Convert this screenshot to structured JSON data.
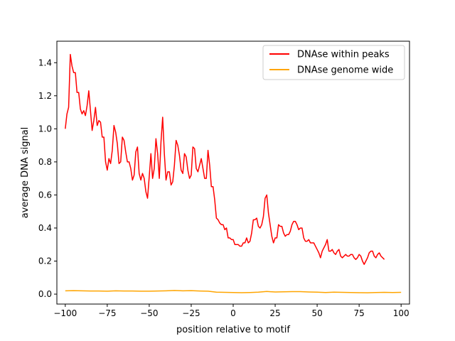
{
  "chart_data": {
    "type": "line",
    "title": "",
    "xlabel": "position relative to motif",
    "ylabel": "average DNA signal",
    "xlim": [
      -105,
      105
    ],
    "ylim": [
      -0.06,
      1.53
    ],
    "xticks": [
      -100,
      -75,
      -50,
      -25,
      0,
      25,
      50,
      75,
      100
    ],
    "xtick_labels": [
      "−100",
      "−75",
      "−50",
      "−25",
      "0",
      "25",
      "50",
      "75",
      "100"
    ],
    "yticks": [
      0.0,
      0.2,
      0.4,
      0.6,
      0.8,
      1.0,
      1.2,
      1.4
    ],
    "ytick_labels": [
      "0.0",
      "0.2",
      "0.4",
      "0.6",
      "0.8",
      "1.0",
      "1.2",
      "1.4"
    ],
    "grid": false,
    "legend_position": "top-right",
    "series": [
      {
        "name": "DNAse within peaks",
        "color": "#ff0000",
        "points": [
          [
            -100,
            1.0
          ],
          [
            -99,
            1.09
          ],
          [
            -98,
            1.13
          ],
          [
            -97,
            1.45
          ],
          [
            -96,
            1.38
          ],
          [
            -95,
            1.34
          ],
          [
            -94,
            1.34
          ],
          [
            -93,
            1.22
          ],
          [
            -92,
            1.22
          ],
          [
            -91,
            1.12
          ],
          [
            -90,
            1.09
          ],
          [
            -89,
            1.11
          ],
          [
            -88,
            1.08
          ],
          [
            -87,
            1.14
          ],
          [
            -86,
            1.23
          ],
          [
            -85,
            1.11
          ],
          [
            -84,
            0.99
          ],
          [
            -83,
            1.05
          ],
          [
            -82,
            1.13
          ],
          [
            -81,
            1.02
          ],
          [
            -80,
            1.05
          ],
          [
            -79,
            1.04
          ],
          [
            -78,
            0.95
          ],
          [
            -77,
            0.95
          ],
          [
            -76,
            0.8
          ],
          [
            -75,
            0.75
          ],
          [
            -74,
            0.82
          ],
          [
            -73,
            0.79
          ],
          [
            -72,
            0.87
          ],
          [
            -71,
            1.02
          ],
          [
            -70,
            0.98
          ],
          [
            -69,
            0.91
          ],
          [
            -68,
            0.79
          ],
          [
            -67,
            0.8
          ],
          [
            -66,
            0.95
          ],
          [
            -65,
            0.93
          ],
          [
            -64,
            0.86
          ],
          [
            -63,
            0.8
          ],
          [
            -62,
            0.8
          ],
          [
            -61,
            0.76
          ],
          [
            -60,
            0.69
          ],
          [
            -59,
            0.72
          ],
          [
            -58,
            0.86
          ],
          [
            -57,
            0.89
          ],
          [
            -56,
            0.73
          ],
          [
            -55,
            0.69
          ],
          [
            -54,
            0.73
          ],
          [
            -53,
            0.7
          ],
          [
            -52,
            0.62
          ],
          [
            -51,
            0.58
          ],
          [
            -50,
            0.71
          ],
          [
            -49,
            0.85
          ],
          [
            -48,
            0.7
          ],
          [
            -47,
            0.76
          ],
          [
            -46,
            0.94
          ],
          [
            -45,
            0.85
          ],
          [
            -44,
            0.7
          ],
          [
            -43,
            0.92
          ],
          [
            -42,
            1.07
          ],
          [
            -41,
            0.85
          ],
          [
            -40,
            0.69
          ],
          [
            -39,
            0.74
          ],
          [
            -38,
            0.74
          ],
          [
            -37,
            0.66
          ],
          [
            -36,
            0.68
          ],
          [
            -35,
            0.78
          ],
          [
            -34,
            0.93
          ],
          [
            -33,
            0.9
          ],
          [
            -32,
            0.84
          ],
          [
            -31,
            0.75
          ],
          [
            -30,
            0.73
          ],
          [
            -29,
            0.85
          ],
          [
            -28,
            0.83
          ],
          [
            -27,
            0.75
          ],
          [
            -26,
            0.7
          ],
          [
            -25,
            0.72
          ],
          [
            -24,
            0.89
          ],
          [
            -23,
            0.88
          ],
          [
            -22,
            0.76
          ],
          [
            -21,
            0.74
          ],
          [
            -20,
            0.78
          ],
          [
            -19,
            0.82
          ],
          [
            -18,
            0.76
          ],
          [
            -17,
            0.7
          ],
          [
            -16,
            0.7
          ],
          [
            -15,
            0.87
          ],
          [
            -14,
            0.78
          ],
          [
            -13,
            0.65
          ],
          [
            -12,
            0.65
          ],
          [
            -11,
            0.57
          ],
          [
            -10,
            0.46
          ],
          [
            -9,
            0.45
          ],
          [
            -8,
            0.43
          ],
          [
            -7,
            0.42
          ],
          [
            -6,
            0.42
          ],
          [
            -5,
            0.39
          ],
          [
            -4,
            0.4
          ],
          [
            -3,
            0.34
          ],
          [
            -2,
            0.34
          ],
          [
            -1,
            0.33
          ],
          [
            0,
            0.33
          ],
          [
            1,
            0.3
          ],
          [
            2,
            0.3
          ],
          [
            3,
            0.3
          ],
          [
            4,
            0.29
          ],
          [
            5,
            0.29
          ],
          [
            6,
            0.31
          ],
          [
            7,
            0.31
          ],
          [
            8,
            0.34
          ],
          [
            9,
            0.31
          ],
          [
            10,
            0.32
          ],
          [
            11,
            0.37
          ],
          [
            12,
            0.45
          ],
          [
            13,
            0.45
          ],
          [
            14,
            0.46
          ],
          [
            15,
            0.41
          ],
          [
            16,
            0.4
          ],
          [
            17,
            0.42
          ],
          [
            18,
            0.47
          ],
          [
            19,
            0.58
          ],
          [
            20,
            0.6
          ],
          [
            21,
            0.49
          ],
          [
            22,
            0.42
          ],
          [
            23,
            0.35
          ],
          [
            24,
            0.31
          ],
          [
            25,
            0.34
          ],
          [
            26,
            0.34
          ],
          [
            27,
            0.42
          ],
          [
            28,
            0.41
          ],
          [
            29,
            0.41
          ],
          [
            30,
            0.37
          ],
          [
            31,
            0.35
          ],
          [
            32,
            0.36
          ],
          [
            33,
            0.36
          ],
          [
            34,
            0.38
          ],
          [
            35,
            0.42
          ],
          [
            36,
            0.44
          ],
          [
            37,
            0.44
          ],
          [
            38,
            0.42
          ],
          [
            39,
            0.39
          ],
          [
            40,
            0.4
          ],
          [
            41,
            0.4
          ],
          [
            42,
            0.34
          ],
          [
            43,
            0.32
          ],
          [
            44,
            0.32
          ],
          [
            45,
            0.33
          ],
          [
            46,
            0.31
          ],
          [
            47,
            0.31
          ],
          [
            48,
            0.31
          ],
          [
            49,
            0.29
          ],
          [
            50,
            0.27
          ],
          [
            51,
            0.25
          ],
          [
            52,
            0.22
          ],
          [
            53,
            0.26
          ],
          [
            54,
            0.28
          ],
          [
            55,
            0.3
          ],
          [
            56,
            0.33
          ],
          [
            57,
            0.26
          ],
          [
            58,
            0.26
          ],
          [
            59,
            0.27
          ],
          [
            60,
            0.25
          ],
          [
            61,
            0.24
          ],
          [
            62,
            0.26
          ],
          [
            63,
            0.27
          ],
          [
            64,
            0.23
          ],
          [
            65,
            0.22
          ],
          [
            66,
            0.23
          ],
          [
            67,
            0.24
          ],
          [
            68,
            0.23
          ],
          [
            69,
            0.23
          ],
          [
            70,
            0.24
          ],
          [
            71,
            0.24
          ],
          [
            72,
            0.22
          ],
          [
            73,
            0.21
          ],
          [
            74,
            0.22
          ],
          [
            75,
            0.24
          ],
          [
            76,
            0.23
          ],
          [
            77,
            0.2
          ],
          [
            78,
            0.18
          ],
          [
            79,
            0.2
          ],
          [
            80,
            0.22
          ],
          [
            81,
            0.25
          ],
          [
            82,
            0.26
          ],
          [
            83,
            0.26
          ],
          [
            84,
            0.23
          ],
          [
            85,
            0.22
          ],
          [
            86,
            0.24
          ],
          [
            87,
            0.25
          ],
          [
            88,
            0.23
          ],
          [
            89,
            0.22
          ],
          [
            90,
            0.21
          ]
        ]
      },
      {
        "name": "DNAse genome wide",
        "color": "#ffa500",
        "points": [
          [
            -100,
            0.02
          ],
          [
            -95,
            0.021
          ],
          [
            -90,
            0.02
          ],
          [
            -85,
            0.019
          ],
          [
            -80,
            0.019
          ],
          [
            -75,
            0.018
          ],
          [
            -70,
            0.02
          ],
          [
            -65,
            0.019
          ],
          [
            -60,
            0.019
          ],
          [
            -55,
            0.018
          ],
          [
            -50,
            0.018
          ],
          [
            -45,
            0.019
          ],
          [
            -40,
            0.02
          ],
          [
            -35,
            0.022
          ],
          [
            -30,
            0.02
          ],
          [
            -25,
            0.021
          ],
          [
            -20,
            0.019
          ],
          [
            -15,
            0.018
          ],
          [
            -10,
            0.012
          ],
          [
            -5,
            0.011
          ],
          [
            0,
            0.01
          ],
          [
            5,
            0.009
          ],
          [
            10,
            0.01
          ],
          [
            15,
            0.012
          ],
          [
            20,
            0.016
          ],
          [
            25,
            0.013
          ],
          [
            30,
            0.014
          ],
          [
            35,
            0.015
          ],
          [
            40,
            0.015
          ],
          [
            45,
            0.013
          ],
          [
            50,
            0.012
          ],
          [
            55,
            0.01
          ],
          [
            60,
            0.012
          ],
          [
            65,
            0.011
          ],
          [
            70,
            0.01
          ],
          [
            75,
            0.009
          ],
          [
            80,
            0.008
          ],
          [
            85,
            0.01
          ],
          [
            90,
            0.011
          ],
          [
            95,
            0.01
          ],
          [
            100,
            0.011
          ]
        ]
      }
    ]
  }
}
